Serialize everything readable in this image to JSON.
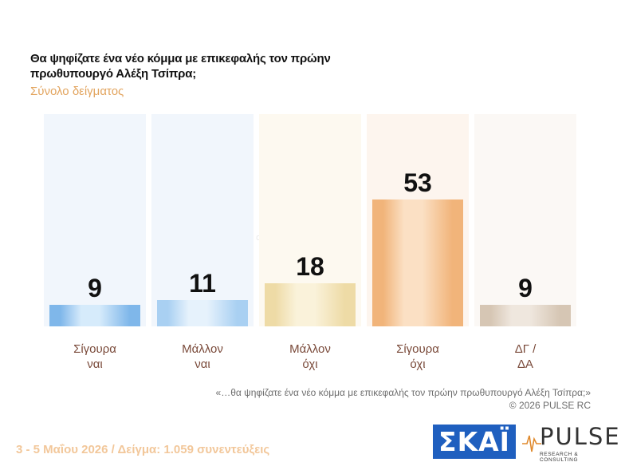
{
  "chart_data": {
    "type": "bar",
    "title": "Θα ψηφίζατε ένα νέο κόμμα με επικεφαλής τον πρώην πρωθυπουργό Αλέξη Τσίπρα;",
    "subtitle": "Σύνολο δείγματος",
    "categories": [
      [
        "Σίγουρα",
        "ναι"
      ],
      [
        "Μάλλον",
        "ναι"
      ],
      [
        "Μάλλον",
        "όχι"
      ],
      [
        "Σίγουρα",
        "όχι"
      ],
      [
        "ΔΓ /",
        "ΔΑ"
      ]
    ],
    "values": [
      9,
      11,
      18,
      53,
      9
    ],
    "bar_colors": [
      "#7fb7ea",
      "#a9d0f2",
      "#eedba6",
      "#f1b47a",
      "#d6c6b4"
    ],
    "bar_highlight_colors": [
      "#d6ebfb",
      "#e6f2fc",
      "#faf2da",
      "#fbe0c4",
      "#efe7de"
    ],
    "column_bg_colors": [
      "#f1f6fc",
      "#f1f6fc",
      "#fdf9f0",
      "#fdf5ee",
      "#fbf8f5"
    ],
    "ylim": [
      0,
      100
    ],
    "grid": false,
    "legend": "none"
  },
  "footnote": {
    "question": "«…θα ψηφίζατε ένα νέο κόμμα με επικεφαλής τον πρώην πρωθυπουργό Αλέξη Τσίπρα;»",
    "copyright": "©  2026  PULSE RC"
  },
  "sample_info": "3 - 5  Μαΐου 2026  /  Δείγμα:  1.059 συνεντεύξεις",
  "logos": {
    "skai": "ΣΚΑΪ",
    "pulse": "PULSE",
    "pulse_tagline": "RESEARCH & CONSULTING"
  },
  "colors": {
    "accent_orange": "#e2a45e",
    "skai_blue": "#1f5fbf"
  }
}
